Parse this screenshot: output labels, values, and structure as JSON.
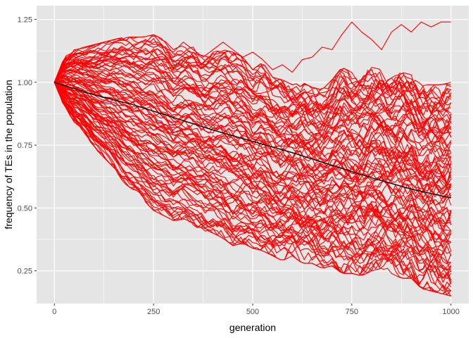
{
  "chart_data": {
    "type": "line",
    "title": "",
    "xlabel": "generation",
    "ylabel": "frequency of TEs in the population",
    "xlim": [
      -45,
      1045
    ],
    "ylim": [
      0.12,
      1.305
    ],
    "x_ticks": [
      0,
      250,
      500,
      750,
      1000
    ],
    "x_tick_labels": [
      "0",
      "250",
      "500",
      "750",
      "1000"
    ],
    "y_ticks": [
      0.25,
      0.5,
      0.75,
      1.0,
      1.25
    ],
    "y_tick_labels": [
      "0.25",
      "0.50",
      "0.75",
      "1.00",
      "1.25"
    ],
    "grid": true,
    "legend": "none",
    "colors": {
      "panel": "#e5e5e5",
      "grid": "#ffffff",
      "replicate": "#ff0000",
      "mean": "#000000"
    },
    "replicates": {
      "count": 100,
      "start": 1.0,
      "color": "#ff0000",
      "x": [
        0,
        25,
        50,
        75,
        100,
        125,
        150,
        175,
        200,
        225,
        250,
        275,
        300,
        325,
        350,
        375,
        400,
        425,
        450,
        475,
        500,
        525,
        550,
        575,
        600,
        625,
        650,
        675,
        700,
        725,
        750,
        775,
        800,
        825,
        850,
        875,
        900,
        925,
        950,
        975,
        1000
      ],
      "envelope_upper": [
        1.0,
        1.1,
        1.13,
        1.14,
        1.15,
        1.16,
        1.17,
        1.18,
        1.18,
        1.18,
        1.19,
        1.17,
        1.13,
        1.15,
        1.14,
        1.1,
        1.12,
        1.13,
        1.12,
        1.1,
        1.05,
        1.08,
        1.02,
        1.01,
        0.99,
        1.0,
        0.98,
        0.97,
        1.01,
        1.06,
        1.04,
        1.03,
        1.06,
        1.05,
        1.02,
        1.04,
        1.03,
        0.99,
        0.99,
        0.99,
        1.0
      ],
      "envelope_lower": [
        1.0,
        0.9,
        0.84,
        0.8,
        0.74,
        0.7,
        0.66,
        0.6,
        0.57,
        0.53,
        0.49,
        0.47,
        0.45,
        0.45,
        0.43,
        0.41,
        0.4,
        0.38,
        0.35,
        0.36,
        0.34,
        0.33,
        0.31,
        0.29,
        0.31,
        0.28,
        0.28,
        0.26,
        0.27,
        0.24,
        0.24,
        0.23,
        0.25,
        0.26,
        0.24,
        0.22,
        0.22,
        0.18,
        0.17,
        0.16,
        0.15
      ],
      "outlier": {
        "x": [
          0,
          25,
          50,
          75,
          100,
          125,
          150,
          175,
          200,
          225,
          250,
          275,
          300,
          325,
          350,
          375,
          400,
          425,
          450,
          475,
          500,
          525,
          550,
          575,
          600,
          625,
          650,
          675,
          700,
          725,
          750,
          775,
          800,
          825,
          850,
          875,
          900,
          925,
          950,
          975,
          1000
        ],
        "y": [
          1.0,
          1.05,
          1.03,
          1.08,
          1.06,
          1.12,
          1.1,
          1.13,
          1.09,
          1.15,
          1.19,
          1.14,
          1.12,
          1.16,
          1.13,
          1.1,
          1.13,
          1.16,
          1.13,
          1.1,
          1.12,
          1.09,
          1.05,
          1.07,
          1.04,
          1.09,
          1.1,
          1.14,
          1.13,
          1.19,
          1.24,
          1.2,
          1.17,
          1.13,
          1.2,
          1.23,
          1.2,
          1.24,
          1.22,
          1.24,
          1.24
        ]
      }
    },
    "mean_series": {
      "color": "#000000",
      "x": [
        0,
        100,
        200,
        300,
        400,
        500,
        600,
        700,
        800,
        900,
        1000
      ],
      "y": [
        1.0,
        0.95,
        0.91,
        0.86,
        0.81,
        0.765,
        0.72,
        0.67,
        0.62,
        0.575,
        0.54
      ]
    }
  }
}
